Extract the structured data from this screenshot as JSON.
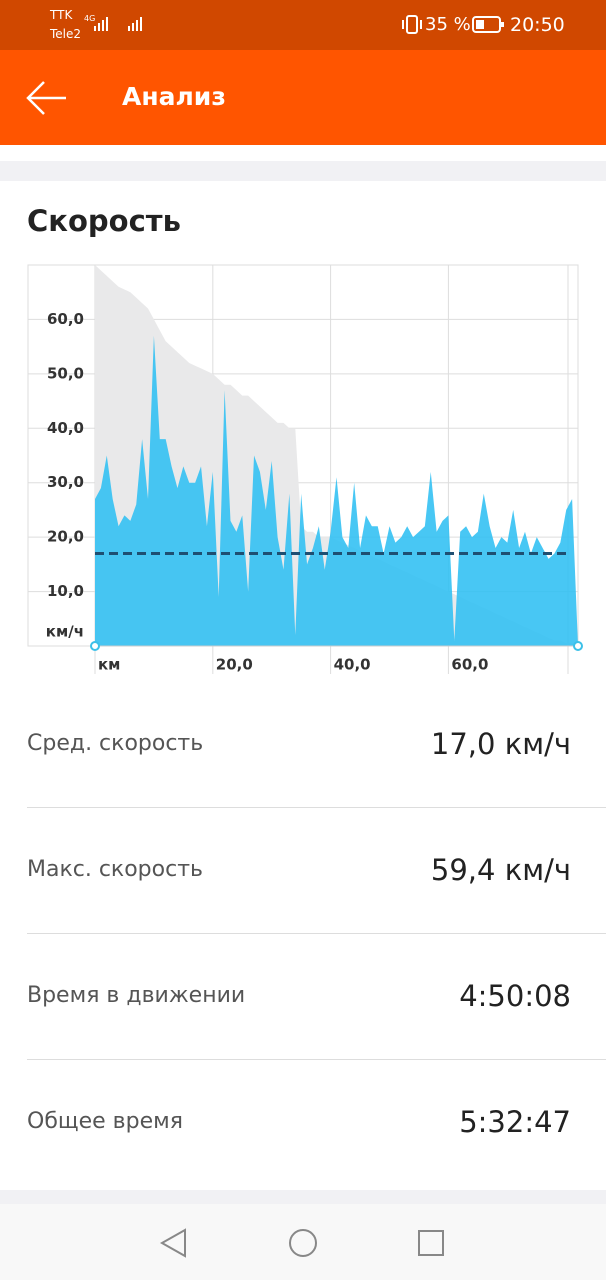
{
  "status_bar": {
    "carrier1": "TTK",
    "carrier2": "Tele2",
    "network": "4G",
    "battery": "35 %",
    "time": "20:50"
  },
  "header": {
    "title": "Анализ"
  },
  "chart_data": {
    "type": "area",
    "title": "Скорость",
    "x": [
      0,
      1,
      2,
      3,
      4,
      5,
      6,
      7,
      8,
      9,
      10,
      11,
      12,
      13,
      14,
      15,
      16,
      17,
      18,
      19,
      20,
      21,
      22,
      23,
      24,
      25,
      26,
      27,
      28,
      29,
      30,
      31,
      32,
      33,
      34,
      35,
      36,
      37,
      38,
      39,
      40,
      41,
      42,
      43,
      44,
      45,
      46,
      47,
      48,
      49,
      50,
      51,
      52,
      53,
      54,
      55,
      56,
      57,
      58,
      59,
      60,
      61,
      62,
      63,
      64,
      65,
      66,
      67,
      68,
      69,
      70,
      71,
      72,
      73,
      74,
      75,
      76,
      77,
      78,
      79,
      80,
      81,
      82
    ],
    "series": [
      {
        "color": "#e9e9ea",
        "values": [
          70,
          69,
          68,
          67,
          66,
          65.5,
          65,
          64,
          63,
          62,
          60,
          58,
          56,
          55,
          54,
          53,
          52,
          51.5,
          51,
          50.5,
          50,
          49,
          48,
          48,
          47,
          46,
          46,
          45,
          44,
          43,
          42,
          41,
          41,
          40,
          40,
          22,
          21,
          21,
          20,
          20,
          20,
          19.5,
          19,
          18.5,
          18,
          17.5,
          17,
          16.5,
          16,
          15.5,
          15,
          14.5,
          14,
          13.5,
          13,
          12.5,
          12,
          11.5,
          11,
          10.5,
          10,
          9.5,
          9,
          8.5,
          8,
          7.5,
          7,
          6.5,
          6,
          5.5,
          5,
          4.5,
          4,
          3.5,
          3,
          2.5,
          2,
          1.5,
          1,
          1,
          0.5,
          0.5,
          0
        ]
      },
      {
        "color": "#2fbff3",
        "values": [
          27,
          29,
          35,
          27,
          22,
          24,
          23,
          26,
          38,
          27,
          57,
          38,
          38,
          33,
          29,
          33,
          30,
          30,
          33,
          22,
          32,
          9,
          47,
          23,
          21,
          24,
          10,
          35,
          32,
          25,
          34,
          20,
          14,
          28,
          2,
          28,
          15,
          18,
          22,
          14,
          21,
          31,
          20,
          18,
          30,
          18,
          24,
          22,
          22,
          17,
          22,
          19,
          20,
          22,
          20,
          21,
          22,
          32,
          21,
          23,
          24,
          1,
          21,
          22,
          20,
          21,
          28,
          22,
          18,
          20,
          19,
          25,
          18,
          21,
          17,
          20,
          18,
          16,
          17,
          19,
          25,
          27,
          0
        ]
      }
    ],
    "average_line": 17,
    "average_color": "#1e4f72",
    "xlim": [
      0,
      82
    ],
    "ylim": [
      0,
      70
    ],
    "xticks": [
      {
        "value": 0,
        "label": "км"
      },
      {
        "value": 20,
        "label": "20,0"
      },
      {
        "value": 40,
        "label": "40,0"
      },
      {
        "value": 60,
        "label": "60,0"
      }
    ],
    "yticks": [
      {
        "value": 0,
        "label": "км/ч"
      },
      {
        "value": 10,
        "label": "10,0"
      },
      {
        "value": 20,
        "label": "20,0"
      },
      {
        "value": 30,
        "label": "30,0"
      },
      {
        "value": 40,
        "label": "40,0"
      },
      {
        "value": 50,
        "label": "50,0"
      },
      {
        "value": 60,
        "label": "60,0"
      }
    ],
    "grid": true
  },
  "stats": [
    {
      "label": "Сред. скорость",
      "value": "17,0 км/ч"
    },
    {
      "label": "Макс. скорость",
      "value": "59,4 км/ч"
    },
    {
      "label": "Время в движении",
      "value": "4:50:08"
    },
    {
      "label": "Общее время",
      "value": "5:32:47"
    }
  ]
}
